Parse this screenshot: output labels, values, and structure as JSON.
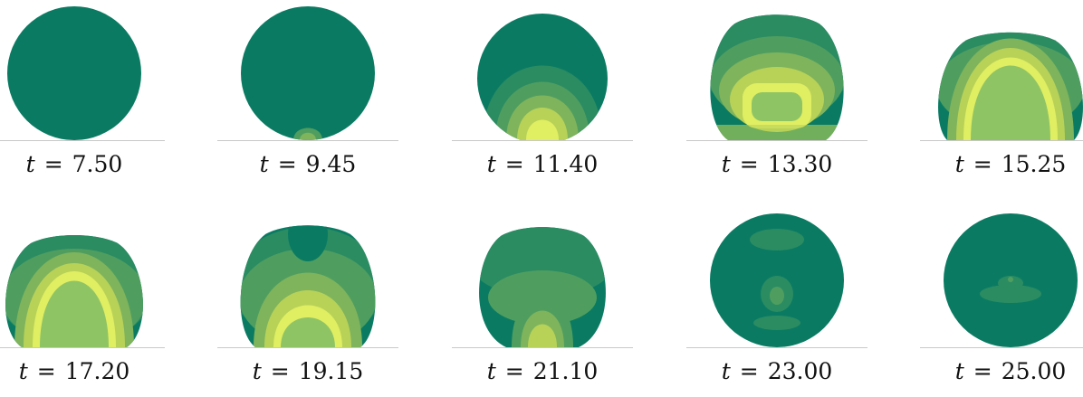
{
  "variable": "t",
  "colors": {
    "dark": "#0a7b62",
    "mid1": "#2b8c62",
    "mid2": "#4f9e5f",
    "mid3": "#7fb45c",
    "light": "#b8d258",
    "bright": "#e0ee62",
    "core": "#8fc465",
    "baseline": "#c9c9c9"
  },
  "panels": [
    {
      "time": "7.50",
      "pattern": "uniform"
    },
    {
      "time": "9.45",
      "pattern": "bottom-spot"
    },
    {
      "time": "11.40",
      "pattern": "bottom-glow"
    },
    {
      "time": "13.30",
      "pattern": "spreading"
    },
    {
      "time": "15.25",
      "pattern": "dome"
    },
    {
      "time": "17.20",
      "pattern": "dome-large"
    },
    {
      "time": "19.15",
      "pattern": "receding"
    },
    {
      "time": "21.10",
      "pattern": "fading"
    },
    {
      "time": "23.00",
      "pattern": "speckled"
    },
    {
      "time": "25.00",
      "pattern": "speckled-faint"
    }
  ]
}
